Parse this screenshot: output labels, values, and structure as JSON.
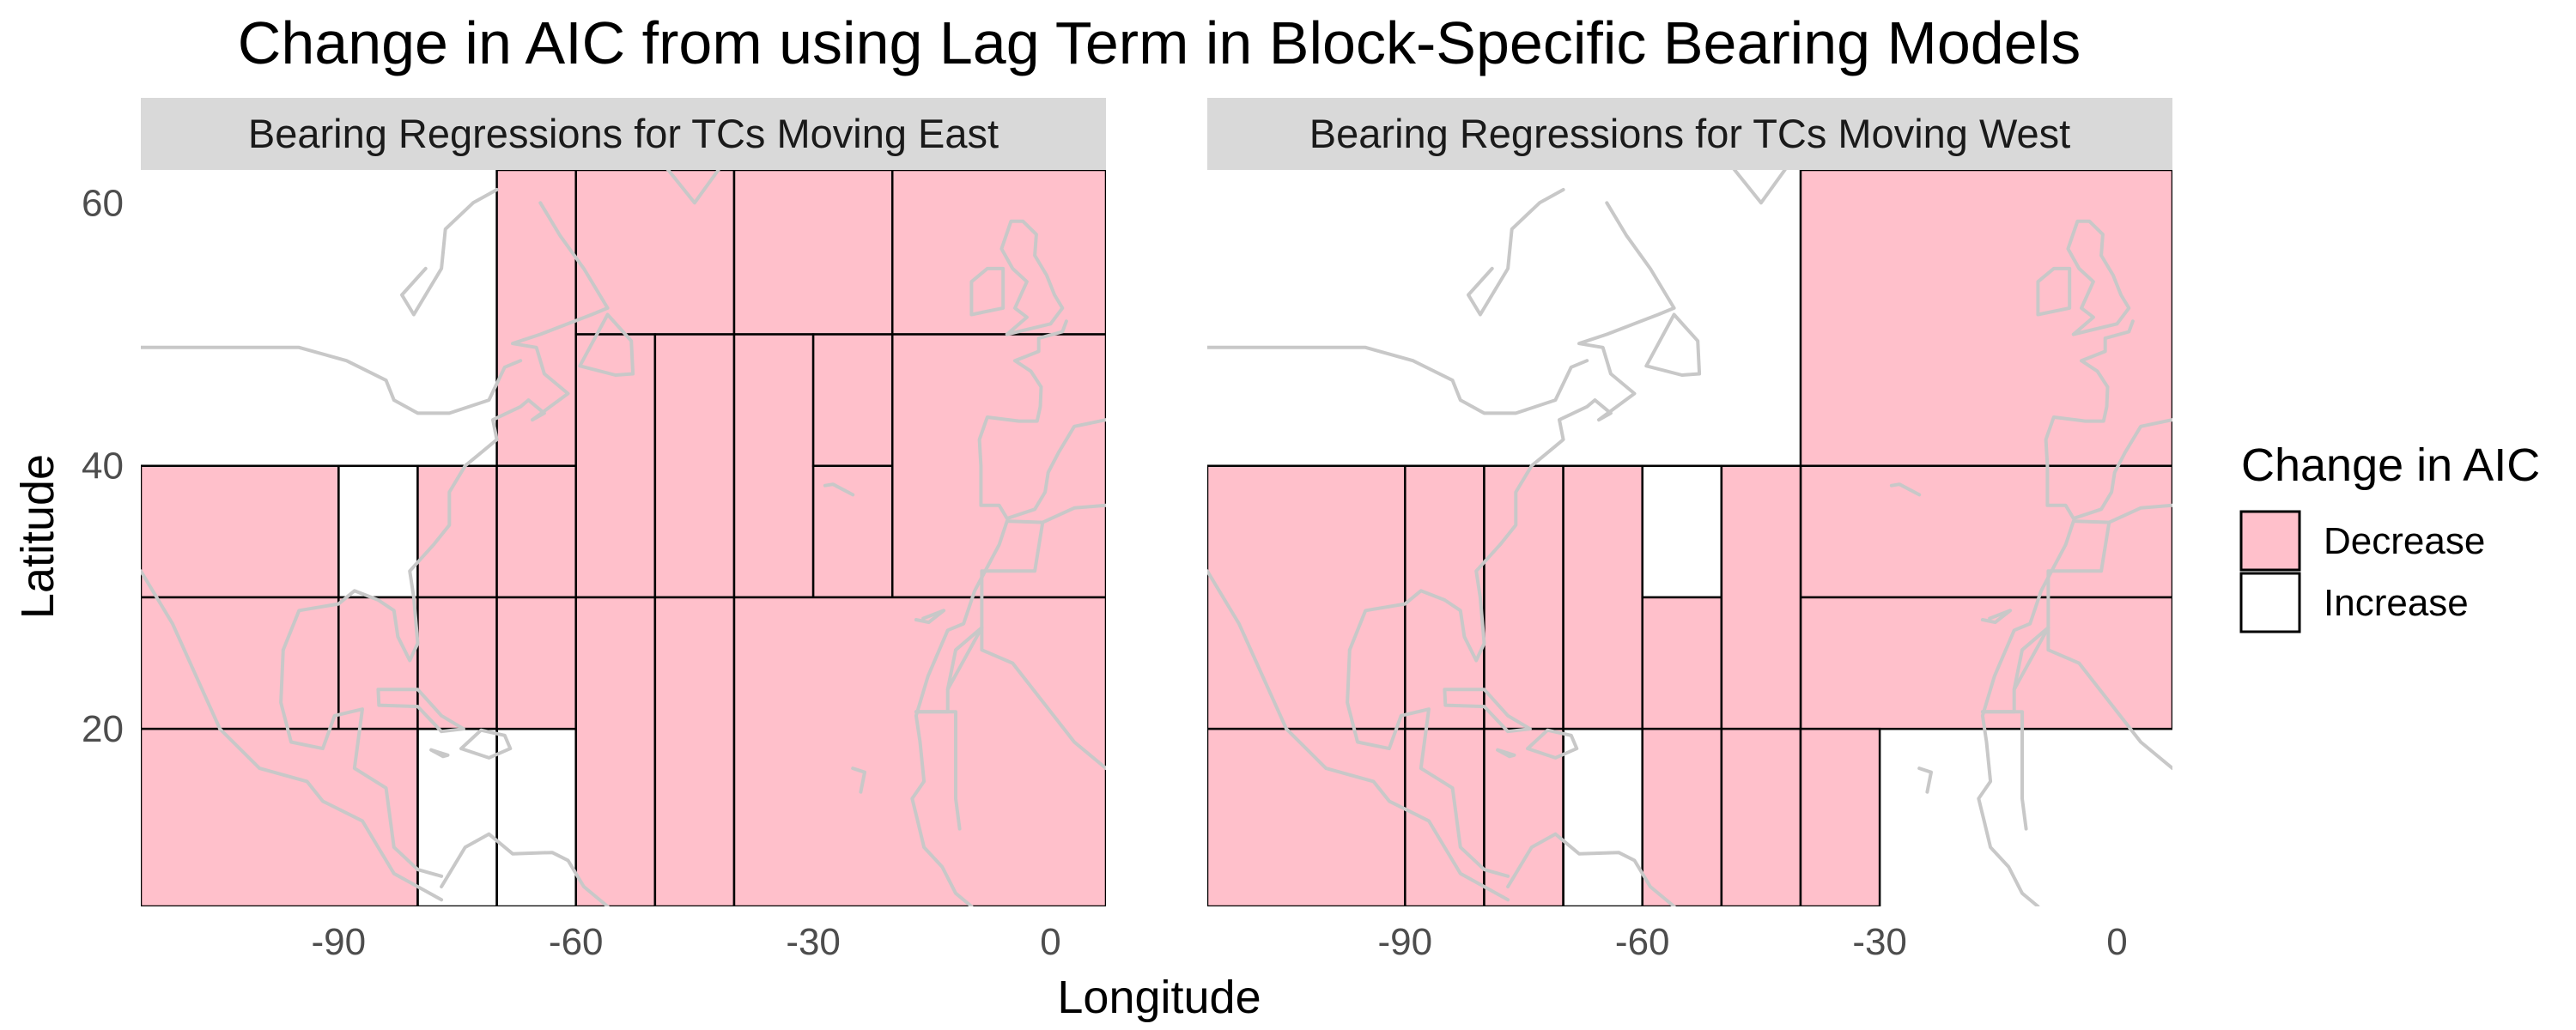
{
  "chart_data": {
    "type": "heatmap",
    "title": "Change in AIC from using Lag Term in Block-Specific Bearing Models",
    "xlabel": "Longitude",
    "ylabel": "Latitude",
    "xlim": [
      -115,
      7
    ],
    "ylim": [
      6.5,
      62.5
    ],
    "x_ticks": [
      -90,
      -60,
      -30,
      0
    ],
    "y_ticks": [
      20,
      40,
      60
    ],
    "grid": false,
    "legend": {
      "title": "Change in AIC",
      "position": "right",
      "entries": [
        {
          "label": "Decrease",
          "color": "#FFC0CB"
        },
        {
          "label": "Increase",
          "color": "#FFFFFF"
        }
      ]
    },
    "panels": [
      {
        "strip": "Bearing Regressions for TCs Moving East",
        "blocks": [
          {
            "lon": [
              -115,
              -90
            ],
            "lat": [
              30,
              40
            ],
            "aic": "Decrease"
          },
          {
            "lon": [
              -90,
              -80
            ],
            "lat": [
              30,
              40
            ],
            "aic": "Increase"
          },
          {
            "lon": [
              -80,
              -70
            ],
            "lat": [
              30,
              40
            ],
            "aic": "Decrease"
          },
          {
            "lon": [
              -115,
              -90
            ],
            "lat": [
              20,
              30
            ],
            "aic": "Decrease"
          },
          {
            "lon": [
              -90,
              -80
            ],
            "lat": [
              20,
              30
            ],
            "aic": "Decrease"
          },
          {
            "lon": [
              -80,
              -70
            ],
            "lat": [
              20,
              30
            ],
            "aic": "Decrease"
          },
          {
            "lon": [
              -115,
              -80
            ],
            "lat": [
              6.5,
              20
            ],
            "aic": "Decrease"
          },
          {
            "lon": [
              -80,
              -70
            ],
            "lat": [
              6.5,
              20
            ],
            "aic": "Increase"
          },
          {
            "lon": [
              -70,
              -60
            ],
            "lat": [
              6.5,
              20
            ],
            "aic": "Increase"
          },
          {
            "lon": [
              -70,
              -60
            ],
            "lat": [
              40,
              62.5
            ],
            "aic": "Decrease"
          },
          {
            "lon": [
              -70,
              -60
            ],
            "lat": [
              30,
              40
            ],
            "aic": "Decrease"
          },
          {
            "lon": [
              -70,
              -60
            ],
            "lat": [
              20,
              30
            ],
            "aic": "Decrease"
          },
          {
            "lon": [
              -60,
              -40
            ],
            "lat": [
              50,
              62.5
            ],
            "aic": "Decrease"
          },
          {
            "lon": [
              -40,
              -20
            ],
            "lat": [
              50,
              62.5
            ],
            "aic": "Decrease"
          },
          {
            "lon": [
              -20,
              7
            ],
            "lat": [
              50,
              62.5
            ],
            "aic": "Decrease"
          },
          {
            "lon": [
              -60,
              -50
            ],
            "lat": [
              30,
              50
            ],
            "aic": "Decrease"
          },
          {
            "lon": [
              -50,
              -40
            ],
            "lat": [
              30,
              50
            ],
            "aic": "Decrease"
          },
          {
            "lon": [
              -40,
              -30
            ],
            "lat": [
              30,
              50
            ],
            "aic": "Decrease"
          },
          {
            "lon": [
              -30,
              -20
            ],
            "lat": [
              40,
              50
            ],
            "aic": "Decrease"
          },
          {
            "lon": [
              -30,
              -20
            ],
            "lat": [
              30,
              40
            ],
            "aic": "Decrease"
          },
          {
            "lon": [
              -20,
              7
            ],
            "lat": [
              30,
              50
            ],
            "aic": "Decrease"
          },
          {
            "lon": [
              -60,
              -50
            ],
            "lat": [
              6.5,
              30
            ],
            "aic": "Decrease"
          },
          {
            "lon": [
              -50,
              -40
            ],
            "lat": [
              6.5,
              30
            ],
            "aic": "Decrease"
          },
          {
            "lon": [
              -40,
              7
            ],
            "lat": [
              6.5,
              30
            ],
            "aic": "Decrease"
          }
        ]
      },
      {
        "strip": "Bearing Regressions for TCs Moving West",
        "blocks": [
          {
            "lon": [
              -40,
              7
            ],
            "lat": [
              40,
              62.5
            ],
            "aic": "Decrease"
          },
          {
            "lon": [
              -40,
              7
            ],
            "lat": [
              30,
              40
            ],
            "aic": "Decrease"
          },
          {
            "lon": [
              -40,
              7
            ],
            "lat": [
              20,
              30
            ],
            "aic": "Decrease"
          },
          {
            "lon": [
              -115,
              -90
            ],
            "lat": [
              20,
              40
            ],
            "aic": "Decrease"
          },
          {
            "lon": [
              -90,
              -80
            ],
            "lat": [
              20,
              40
            ],
            "aic": "Decrease"
          },
          {
            "lon": [
              -80,
              -70
            ],
            "lat": [
              20,
              40
            ],
            "aic": "Decrease"
          },
          {
            "lon": [
              -70,
              -60
            ],
            "lat": [
              20,
              40
            ],
            "aic": "Decrease"
          },
          {
            "lon": [
              -60,
              -50
            ],
            "lat": [
              30,
              40
            ],
            "aic": "Increase"
          },
          {
            "lon": [
              -60,
              -50
            ],
            "lat": [
              20,
              30
            ],
            "aic": "Decrease"
          },
          {
            "lon": [
              -50,
              -40
            ],
            "lat": [
              20,
              40
            ],
            "aic": "Decrease"
          },
          {
            "lon": [
              -115,
              -90
            ],
            "lat": [
              6.5,
              20
            ],
            "aic": "Decrease"
          },
          {
            "lon": [
              -90,
              -80
            ],
            "lat": [
              6.5,
              20
            ],
            "aic": "Decrease"
          },
          {
            "lon": [
              -80,
              -70
            ],
            "lat": [
              6.5,
              20
            ],
            "aic": "Decrease"
          },
          {
            "lon": [
              -70,
              -60
            ],
            "lat": [
              6.5,
              20
            ],
            "aic": "Increase"
          },
          {
            "lon": [
              -60,
              -50
            ],
            "lat": [
              6.5,
              20
            ],
            "aic": "Decrease"
          },
          {
            "lon": [
              -50,
              -40
            ],
            "lat": [
              6.5,
              20
            ],
            "aic": "Decrease"
          },
          {
            "lon": [
              -40,
              -30
            ],
            "lat": [
              6.5,
              20
            ],
            "aic": "Decrease"
          }
        ]
      }
    ]
  }
}
